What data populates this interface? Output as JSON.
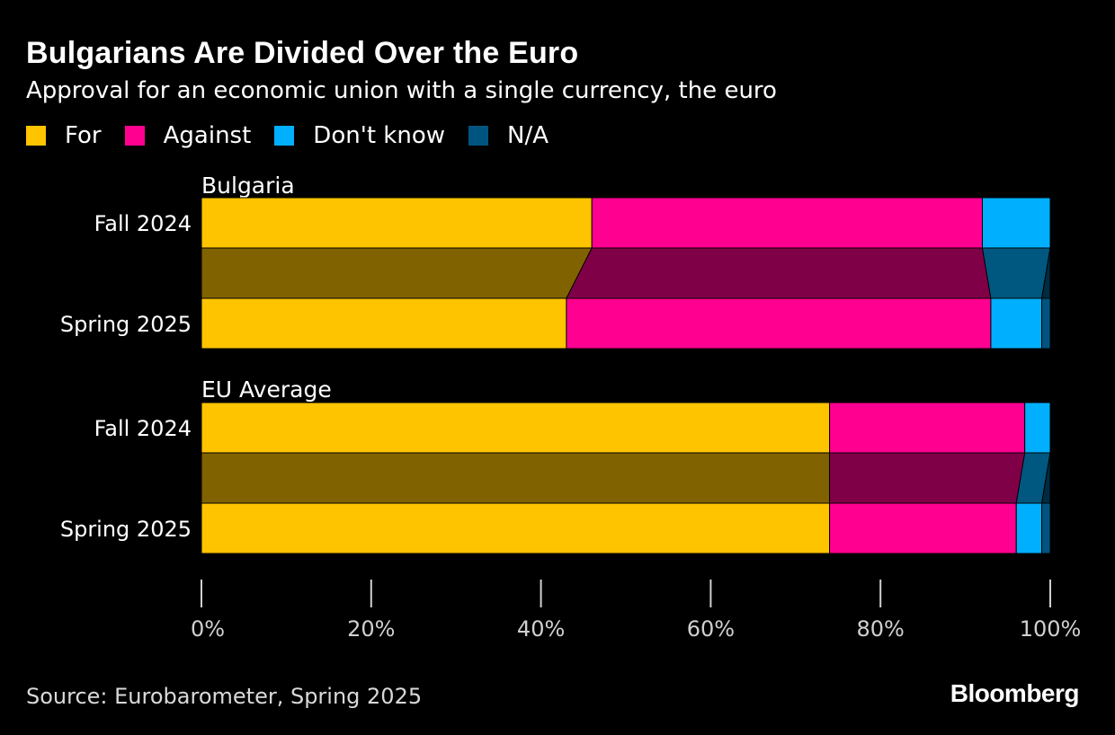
{
  "header": {
    "title": "Bulgarians Are Divided Over the Euro",
    "subtitle": "Approval for an economic union with a single currency, the euro"
  },
  "legend": [
    {
      "label": "For",
      "color": "#FFC400"
    },
    {
      "label": "Against",
      "color": "#FF0090"
    },
    {
      "label": "Don't know",
      "color": "#00B0FF"
    },
    {
      "label": "N/A",
      "color": "#005580"
    }
  ],
  "chart_data": {
    "type": "bar",
    "orientation": "horizontal",
    "stacked": true,
    "series_names": [
      "For",
      "Against",
      "Don't know",
      "N/A"
    ],
    "groups": [
      {
        "name": "Bulgaria",
        "rows": [
          {
            "label": "Fall 2024",
            "values": [
              46,
              46,
              8,
              0
            ]
          },
          {
            "label": "Spring 2025",
            "values": [
              43,
              50,
              6,
              1
            ]
          }
        ]
      },
      {
        "name": "EU Average",
        "rows": [
          {
            "label": "Fall 2024",
            "values": [
              74,
              23,
              3,
              0
            ]
          },
          {
            "label": "Spring 2025",
            "values": [
              74,
              22,
              3,
              1
            ]
          }
        ]
      }
    ],
    "xlim": [
      0,
      100
    ],
    "xticks": [
      "0%",
      "20%",
      "40%",
      "60%",
      "80%",
      "100%"
    ],
    "grid": false
  },
  "footer": {
    "source": "Source: Eurobarometer, Spring 2025",
    "brand": "Bloomberg"
  }
}
